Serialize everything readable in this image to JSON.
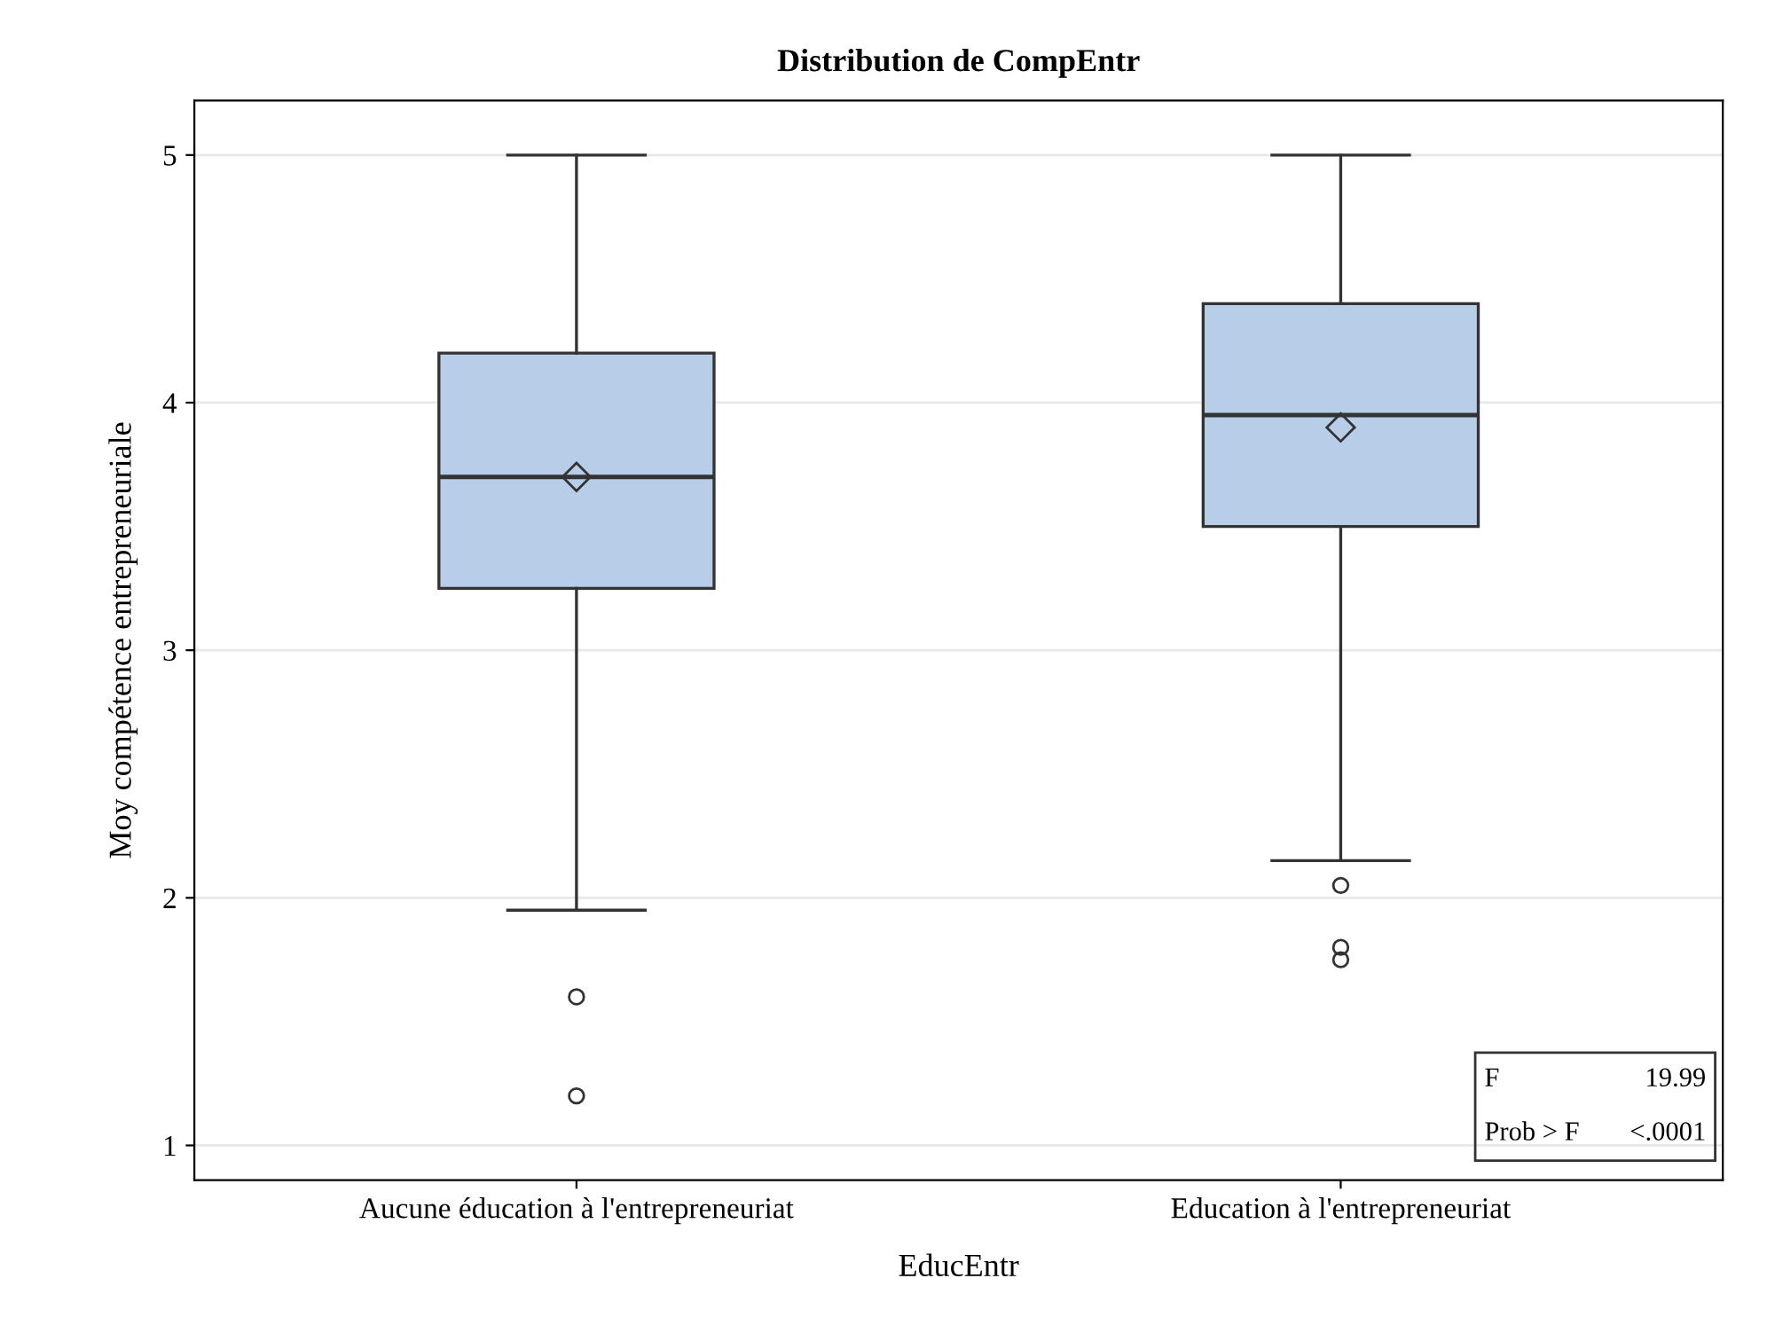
{
  "chart_data": {
    "type": "box",
    "title": "Distribution de CompEntr",
    "xlabel": "EducEntr",
    "ylabel": "Moy compétence entrepreneuriale",
    "categories": [
      "Aucune éducation à l'entrepreneuriat",
      "Education à l'entrepreneuriat"
    ],
    "boxes": [
      {
        "low": 1.95,
        "q1": 3.25,
        "median": 3.7,
        "q3": 4.2,
        "high": 5,
        "mean": 3.7,
        "outliers": [
          1.6,
          1.2
        ]
      },
      {
        "low": 2.15,
        "q1": 3.5,
        "median": 3.95,
        "q3": 4.4,
        "high": 5,
        "mean": 3.9,
        "outliers": [
          2.05,
          1.8,
          1.75
        ]
      }
    ],
    "color": "#b8cee8",
    "ylim": [
      0.86,
      5.22
    ],
    "yticks": [
      1,
      2,
      3,
      4,
      5
    ],
    "grid": "y",
    "annotations": [
      "F",
      "19.99",
      "Prob > F",
      "<.0001"
    ]
  }
}
